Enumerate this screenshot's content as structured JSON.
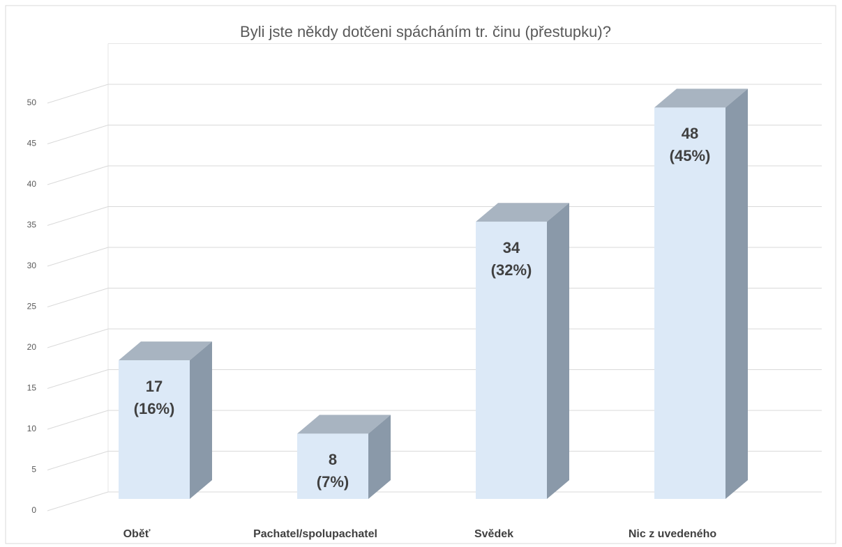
{
  "chart_data": {
    "type": "bar3d",
    "title": "Byli jste někdy dotčeni spácháním tr. činu (přestupku)?",
    "categories": [
      "Oběť",
      "Pachatel/spolupachatel",
      "Svědek",
      "Nic z uvedeného"
    ],
    "values": [
      17,
      8,
      34,
      48
    ],
    "value_labels": [
      "17\n(16%)",
      "8\n(7%)",
      "34\n(32%)",
      "48\n(45%)"
    ],
    "color": "#dce9f7",
    "ylim": [
      0,
      55
    ],
    "yticks": [
      0,
      5,
      10,
      15,
      20,
      25,
      30,
      35,
      40,
      45,
      50
    ],
    "grid": true
  }
}
